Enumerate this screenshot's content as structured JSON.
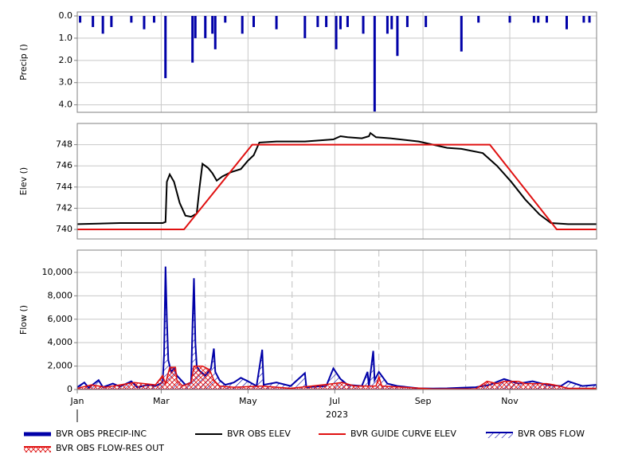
{
  "chart_data": [
    {
      "type": "bar",
      "ylabel": "Precip ()",
      "y_inverted": true,
      "grid": true,
      "ylim": [
        0,
        4.3
      ],
      "yticks": [
        {
          "value": 0,
          "label": "0.0"
        },
        {
          "value": 1,
          "label": "1.0"
        },
        {
          "value": 2,
          "label": "2.0"
        },
        {
          "value": 3,
          "label": "3.0"
        },
        {
          "value": 4,
          "label": "4.0"
        }
      ],
      "series": [
        {
          "name": "BVR OBS PRECIP-INC",
          "color": "#0000a8",
          "x": [
            2,
            11,
            18,
            24,
            38,
            47,
            54,
            62,
            81,
            83,
            90,
            95,
            97,
            104,
            116,
            124,
            140,
            160,
            169,
            175,
            182,
            185,
            190,
            201,
            209,
            218,
            221,
            225,
            232,
            245,
            270,
            282,
            304,
            321,
            324,
            330,
            344,
            356,
            360
          ],
          "values": [
            0.3,
            0.5,
            0.8,
            0.5,
            0.3,
            0.6,
            0.3,
            2.8,
            2.1,
            1.0,
            1.0,
            0.8,
            1.5,
            0.3,
            0.8,
            0.5,
            0.6,
            1.0,
            0.5,
            0.5,
            1.5,
            0.6,
            0.5,
            0.8,
            4.3,
            0.8,
            0.6,
            1.8,
            0.5,
            0.5,
            1.6,
            0.3,
            0.3,
            0.3,
            0.3,
            0.3,
            0.6,
            0.3,
            0.3
          ]
        }
      ]
    },
    {
      "type": "line",
      "ylabel": "Elev ()",
      "grid": true,
      "ylim": [
        739.1,
        750
      ],
      "yticks": [
        740,
        742,
        744,
        746,
        748
      ],
      "series": [
        {
          "name": "BVR OBS ELEV",
          "color": "#000000",
          "x": [
            0,
            30,
            60,
            62,
            63,
            65,
            68,
            72,
            76,
            80,
            84,
            86,
            88,
            92,
            95,
            98,
            102,
            108,
            115,
            120,
            124,
            128,
            140,
            160,
            180,
            185,
            190,
            200,
            205,
            206,
            210,
            220,
            240,
            250,
            260,
            270,
            285,
            295,
            305,
            315,
            325,
            333,
            345,
            365
          ],
          "values": [
            740.5,
            740.6,
            740.6,
            740.7,
            744.5,
            745.2,
            744.5,
            742.5,
            741.3,
            741.2,
            741.5,
            744.0,
            746.2,
            745.8,
            745.3,
            744.6,
            745.0,
            745.4,
            745.7,
            746.5,
            747.0,
            748.2,
            748.3,
            748.3,
            748.5,
            748.8,
            748.7,
            748.6,
            748.8,
            749.1,
            748.7,
            748.6,
            748.3,
            748.0,
            747.7,
            747.6,
            747.2,
            746.0,
            744.5,
            742.8,
            741.4,
            740.6,
            740.5,
            740.5
          ]
        },
        {
          "name": "BVR GUIDE CURVE ELEV",
          "color": "#e01010",
          "x": [
            0,
            75,
            123,
            290,
            337,
            365
          ],
          "values": [
            740,
            740,
            748,
            748,
            740,
            740
          ]
        }
      ]
    },
    {
      "type": "area",
      "ylabel": "Flow ()",
      "grid": true,
      "xlabel": "2023",
      "ylim": [
        0,
        11900
      ],
      "yticks": [
        0,
        {
          "value": 2000,
          "label": "2,000"
        },
        {
          "value": 4000,
          "label": "4,000"
        },
        {
          "value": 6000,
          "label": "6,000"
        },
        {
          "value": 8000,
          "label": "8,000"
        },
        {
          "value": 10000,
          "label": "10,000"
        }
      ],
      "xlim": [
        0,
        365
      ],
      "xticks": [
        {
          "value": 0,
          "label": "Jan"
        },
        {
          "value": 59,
          "label": "Mar"
        },
        {
          "value": 120,
          "label": "May"
        },
        {
          "value": 181,
          "label": "Jul"
        },
        {
          "value": 243,
          "label": "Sep"
        },
        {
          "value": 304,
          "label": "Nov"
        }
      ],
      "xminor": [
        31,
        90,
        151,
        212,
        273,
        334
      ],
      "series": [
        {
          "name": "BVR OBS FLOW",
          "color": "#0000a8",
          "x": [
            0,
            5,
            8,
            15,
            18,
            25,
            30,
            38,
            42,
            50,
            55,
            60,
            61,
            62,
            63,
            64,
            66,
            68,
            70,
            73,
            76,
            80,
            81,
            82,
            83,
            84,
            86,
            90,
            94,
            96,
            97,
            100,
            104,
            110,
            115,
            120,
            126,
            130,
            131,
            140,
            150,
            160,
            161,
            175,
            180,
            185,
            190,
            200,
            204,
            205,
            208,
            209,
            212,
            218,
            225,
            240,
            250,
            260,
            270,
            280,
            290,
            300,
            310,
            320,
            330,
            340,
            345,
            355,
            365
          ],
          "values": [
            200,
            600,
            150,
            800,
            200,
            500,
            250,
            700,
            200,
            400,
            300,
            600,
            3000,
            10500,
            6000,
            2500,
            1500,
            1800,
            1200,
            800,
            400,
            600,
            5500,
            9500,
            4000,
            2000,
            1600,
            1200,
            1800,
            3500,
            1500,
            800,
            400,
            600,
            1000,
            700,
            300,
            3400,
            400,
            600,
            300,
            1400,
            200,
            300,
            1800,
            900,
            400,
            300,
            1500,
            300,
            3300,
            800,
            1500,
            500,
            300,
            100,
            80,
            100,
            150,
            200,
            400,
            900,
            500,
            700,
            400,
            300,
            700,
            300,
            400
          ]
        },
        {
          "name": "BVR OBS FLOW-RES OUT",
          "color": "#e01010",
          "x": [
            0,
            10,
            20,
            40,
            55,
            60,
            62,
            65,
            69,
            70,
            74,
            80,
            82,
            88,
            93,
            96,
            100,
            110,
            130,
            150,
            180,
            186,
            195,
            210,
            212,
            214,
            250,
            280,
            288,
            295,
            300,
            310,
            315,
            330,
            335,
            345,
            365
          ],
          "values": [
            100,
            400,
            200,
            600,
            400,
            1200,
            500,
            1900,
            1900,
            800,
            300,
            600,
            2000,
            2000,
            1700,
            800,
            300,
            200,
            300,
            100,
            500,
            600,
            300,
            300,
            1100,
            300,
            50,
            50,
            700,
            500,
            700,
            700,
            500,
            500,
            400,
            100,
            100
          ]
        }
      ]
    }
  ]
}
